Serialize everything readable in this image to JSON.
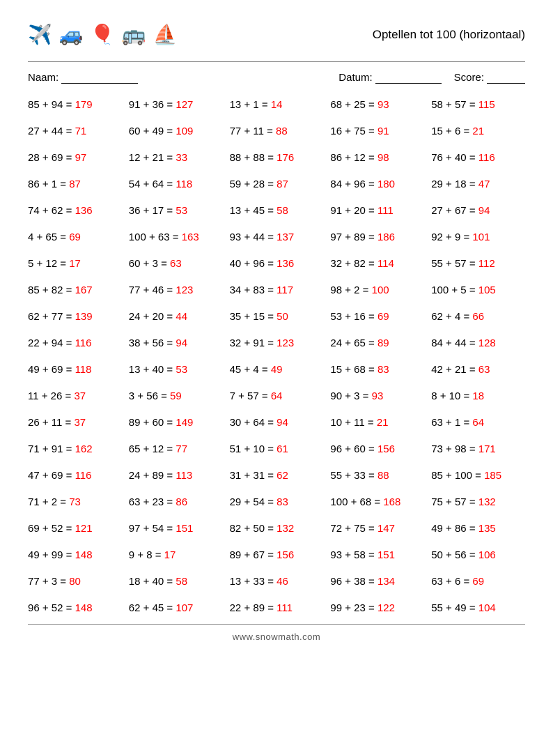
{
  "title": "Optellen tot 100 (horizontaal)",
  "icons": [
    "✈️",
    "🚙",
    "🎈",
    "🚌",
    "⛵"
  ],
  "meta": {
    "naam_label": "Naam:",
    "datum_label": "Datum:",
    "score_label": "Score:",
    "naam_line_width": 110,
    "datum_line_width": 95,
    "score_line_width": 55
  },
  "style": {
    "answer_color": "#ff0000",
    "text_color": "#000000",
    "columns": 5,
    "rows": 20,
    "font_size": 15
  },
  "footer": "www.snowmath.com",
  "problems": [
    [
      {
        "a": 85,
        "b": 94,
        "r": 179
      },
      {
        "a": 91,
        "b": 36,
        "r": 127
      },
      {
        "a": 13,
        "b": 1,
        "r": 14
      },
      {
        "a": 68,
        "b": 25,
        "r": 93
      },
      {
        "a": 58,
        "b": 57,
        "r": 115
      }
    ],
    [
      {
        "a": 27,
        "b": 44,
        "r": 71
      },
      {
        "a": 60,
        "b": 49,
        "r": 109
      },
      {
        "a": 77,
        "b": 11,
        "r": 88
      },
      {
        "a": 16,
        "b": 75,
        "r": 91
      },
      {
        "a": 15,
        "b": 6,
        "r": 21
      }
    ],
    [
      {
        "a": 28,
        "b": 69,
        "r": 97
      },
      {
        "a": 12,
        "b": 21,
        "r": 33
      },
      {
        "a": 88,
        "b": 88,
        "r": 176
      },
      {
        "a": 86,
        "b": 12,
        "r": 98
      },
      {
        "a": 76,
        "b": 40,
        "r": 116
      }
    ],
    [
      {
        "a": 86,
        "b": 1,
        "r": 87
      },
      {
        "a": 54,
        "b": 64,
        "r": 118
      },
      {
        "a": 59,
        "b": 28,
        "r": 87
      },
      {
        "a": 84,
        "b": 96,
        "r": 180
      },
      {
        "a": 29,
        "b": 18,
        "r": 47
      }
    ],
    [
      {
        "a": 74,
        "b": 62,
        "r": 136
      },
      {
        "a": 36,
        "b": 17,
        "r": 53
      },
      {
        "a": 13,
        "b": 45,
        "r": 58
      },
      {
        "a": 91,
        "b": 20,
        "r": 111
      },
      {
        "a": 27,
        "b": 67,
        "r": 94
      }
    ],
    [
      {
        "a": 4,
        "b": 65,
        "r": 69
      },
      {
        "a": 100,
        "b": 63,
        "r": 163
      },
      {
        "a": 93,
        "b": 44,
        "r": 137
      },
      {
        "a": 97,
        "b": 89,
        "r": 186
      },
      {
        "a": 92,
        "b": 9,
        "r": 101
      }
    ],
    [
      {
        "a": 5,
        "b": 12,
        "r": 17
      },
      {
        "a": 60,
        "b": 3,
        "r": 63
      },
      {
        "a": 40,
        "b": 96,
        "r": 136
      },
      {
        "a": 32,
        "b": 82,
        "r": 114
      },
      {
        "a": 55,
        "b": 57,
        "r": 112
      }
    ],
    [
      {
        "a": 85,
        "b": 82,
        "r": 167
      },
      {
        "a": 77,
        "b": 46,
        "r": 123
      },
      {
        "a": 34,
        "b": 83,
        "r": 117
      },
      {
        "a": 98,
        "b": 2,
        "r": 100
      },
      {
        "a": 100,
        "b": 5,
        "r": 105
      }
    ],
    [
      {
        "a": 62,
        "b": 77,
        "r": 139
      },
      {
        "a": 24,
        "b": 20,
        "r": 44
      },
      {
        "a": 35,
        "b": 15,
        "r": 50
      },
      {
        "a": 53,
        "b": 16,
        "r": 69
      },
      {
        "a": 62,
        "b": 4,
        "r": 66
      }
    ],
    [
      {
        "a": 22,
        "b": 94,
        "r": 116
      },
      {
        "a": 38,
        "b": 56,
        "r": 94
      },
      {
        "a": 32,
        "b": 91,
        "r": 123
      },
      {
        "a": 24,
        "b": 65,
        "r": 89
      },
      {
        "a": 84,
        "b": 44,
        "r": 128
      }
    ],
    [
      {
        "a": 49,
        "b": 69,
        "r": 118
      },
      {
        "a": 13,
        "b": 40,
        "r": 53
      },
      {
        "a": 45,
        "b": 4,
        "r": 49
      },
      {
        "a": 15,
        "b": 68,
        "r": 83
      },
      {
        "a": 42,
        "b": 21,
        "r": 63
      }
    ],
    [
      {
        "a": 11,
        "b": 26,
        "r": 37
      },
      {
        "a": 3,
        "b": 56,
        "r": 59
      },
      {
        "a": 7,
        "b": 57,
        "r": 64
      },
      {
        "a": 90,
        "b": 3,
        "r": 93
      },
      {
        "a": 8,
        "b": 10,
        "r": 18
      }
    ],
    [
      {
        "a": 26,
        "b": 11,
        "r": 37
      },
      {
        "a": 89,
        "b": 60,
        "r": 149
      },
      {
        "a": 30,
        "b": 64,
        "r": 94
      },
      {
        "a": 10,
        "b": 11,
        "r": 21
      },
      {
        "a": 63,
        "b": 1,
        "r": 64
      }
    ],
    [
      {
        "a": 71,
        "b": 91,
        "r": 162
      },
      {
        "a": 65,
        "b": 12,
        "r": 77
      },
      {
        "a": 51,
        "b": 10,
        "r": 61
      },
      {
        "a": 96,
        "b": 60,
        "r": 156
      },
      {
        "a": 73,
        "b": 98,
        "r": 171
      }
    ],
    [
      {
        "a": 47,
        "b": 69,
        "r": 116
      },
      {
        "a": 24,
        "b": 89,
        "r": 113
      },
      {
        "a": 31,
        "b": 31,
        "r": 62
      },
      {
        "a": 55,
        "b": 33,
        "r": 88
      },
      {
        "a": 85,
        "b": 100,
        "r": 185
      }
    ],
    [
      {
        "a": 71,
        "b": 2,
        "r": 73
      },
      {
        "a": 63,
        "b": 23,
        "r": 86
      },
      {
        "a": 29,
        "b": 54,
        "r": 83
      },
      {
        "a": 100,
        "b": 68,
        "r": 168
      },
      {
        "a": 75,
        "b": 57,
        "r": 132
      }
    ],
    [
      {
        "a": 69,
        "b": 52,
        "r": 121
      },
      {
        "a": 97,
        "b": 54,
        "r": 151
      },
      {
        "a": 82,
        "b": 50,
        "r": 132
      },
      {
        "a": 72,
        "b": 75,
        "r": 147
      },
      {
        "a": 49,
        "b": 86,
        "r": 135
      }
    ],
    [
      {
        "a": 49,
        "b": 99,
        "r": 148
      },
      {
        "a": 9,
        "b": 8,
        "r": 17
      },
      {
        "a": 89,
        "b": 67,
        "r": 156
      },
      {
        "a": 93,
        "b": 58,
        "r": 151
      },
      {
        "a": 50,
        "b": 56,
        "r": 106
      }
    ],
    [
      {
        "a": 77,
        "b": 3,
        "r": 80
      },
      {
        "a": 18,
        "b": 40,
        "r": 58
      },
      {
        "a": 13,
        "b": 33,
        "r": 46
      },
      {
        "a": 96,
        "b": 38,
        "r": 134
      },
      {
        "a": 63,
        "b": 6,
        "r": 69
      }
    ],
    [
      {
        "a": 96,
        "b": 52,
        "r": 148
      },
      {
        "a": 62,
        "b": 45,
        "r": 107
      },
      {
        "a": 22,
        "b": 89,
        "r": 111
      },
      {
        "a": 99,
        "b": 23,
        "r": 122
      },
      {
        "a": 55,
        "b": 49,
        "r": 104
      }
    ]
  ]
}
